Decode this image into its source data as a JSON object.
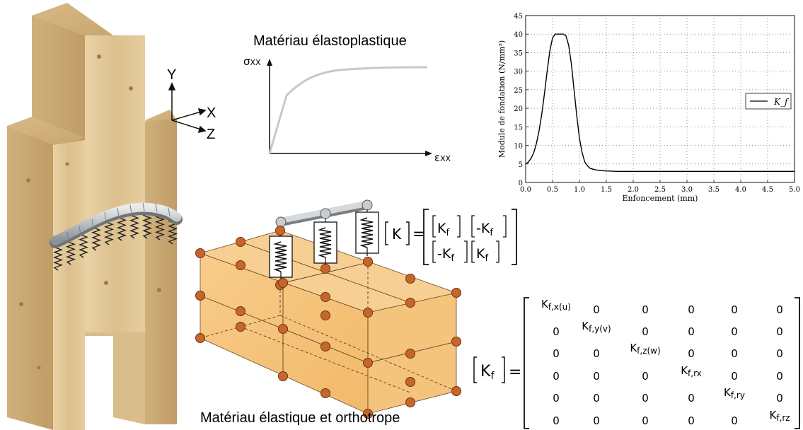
{
  "timber": {
    "axis_y": "Y",
    "axis_x": "X",
    "axis_z": "Z"
  },
  "elastoplastic": {
    "title": "Matériau élastoplastique",
    "y_label": "σ",
    "y_sub": "XX",
    "x_label": "ε",
    "x_sub": "XX"
  },
  "fe_block": {
    "caption": "Matériau élastique et orthotrope"
  },
  "stiffness_K": {
    "lhs": "K",
    "cells": [
      [
        "K",
        "-K"
      ],
      [
        "-K",
        "K"
      ]
    ],
    "sub": "f"
  },
  "stiffness_Kf": {
    "lhs": "K",
    "lhs_sub": "f",
    "rows": [
      [
        "Kf,x(u)",
        "0",
        "0",
        "0",
        "0",
        "0"
      ],
      [
        "0",
        "Kf,y(v)",
        "0",
        "0",
        "0",
        "0"
      ],
      [
        "0",
        "0",
        "Kf,z(w)",
        "0",
        "0",
        "0"
      ],
      [
        "0",
        "0",
        "0",
        "Kf,rx",
        "0",
        "0"
      ],
      [
        "0",
        "0",
        "0",
        "0",
        "Kf,ry",
        "0"
      ],
      [
        "0",
        "0",
        "0",
        "0",
        "0",
        "Kf,rz"
      ]
    ]
  },
  "chart_data": {
    "type": "line",
    "title": "",
    "xlabel": "Enfoncement (mm)",
    "ylabel": "Module de fondation (N/mm³)",
    "xlim": [
      0.0,
      5.0
    ],
    "ylim": [
      0,
      45
    ],
    "xticks": [
      "0.0",
      "0.5",
      "1.0",
      "1.5",
      "2.0",
      "2.5",
      "3.0",
      "3.5",
      "4.0",
      "4.5",
      "5.0"
    ],
    "yticks": [
      "0",
      "5",
      "10",
      "15",
      "20",
      "25",
      "30",
      "35",
      "40",
      "45"
    ],
    "grid": true,
    "legend": "right",
    "series": [
      {
        "name": "K_f",
        "color": "#000000",
        "x": [
          0.0,
          0.05,
          0.1,
          0.15,
          0.2,
          0.25,
          0.3,
          0.35,
          0.4,
          0.45,
          0.5,
          0.55,
          0.6,
          0.65,
          0.7,
          0.75,
          0.8,
          0.85,
          0.9,
          0.95,
          1.0,
          1.05,
          1.1,
          1.15,
          1.2,
          1.3,
          1.4,
          1.5,
          1.7,
          2.0,
          2.5,
          3.0,
          3.5,
          4.0,
          4.5,
          5.0
        ],
        "y": [
          5.0,
          5.5,
          6.5,
          8.0,
          10.5,
          14.0,
          18.5,
          24.0,
          30.0,
          35.5,
          39.0,
          40.0,
          40.0,
          40.0,
          40.0,
          39.5,
          37.0,
          32.0,
          25.0,
          18.0,
          12.0,
          8.0,
          5.5,
          4.5,
          3.8,
          3.4,
          3.2,
          3.1,
          3.0,
          3.0,
          3.0,
          3.0,
          3.0,
          3.0,
          3.0,
          3.0
        ]
      }
    ]
  },
  "colors": {
    "wood": "#e3cb9c",
    "wood_dark": "#c7a673",
    "block_face": "#f6c27a",
    "node": "#c8662a",
    "spring": "#222222",
    "rod": "#b8bcc0"
  }
}
